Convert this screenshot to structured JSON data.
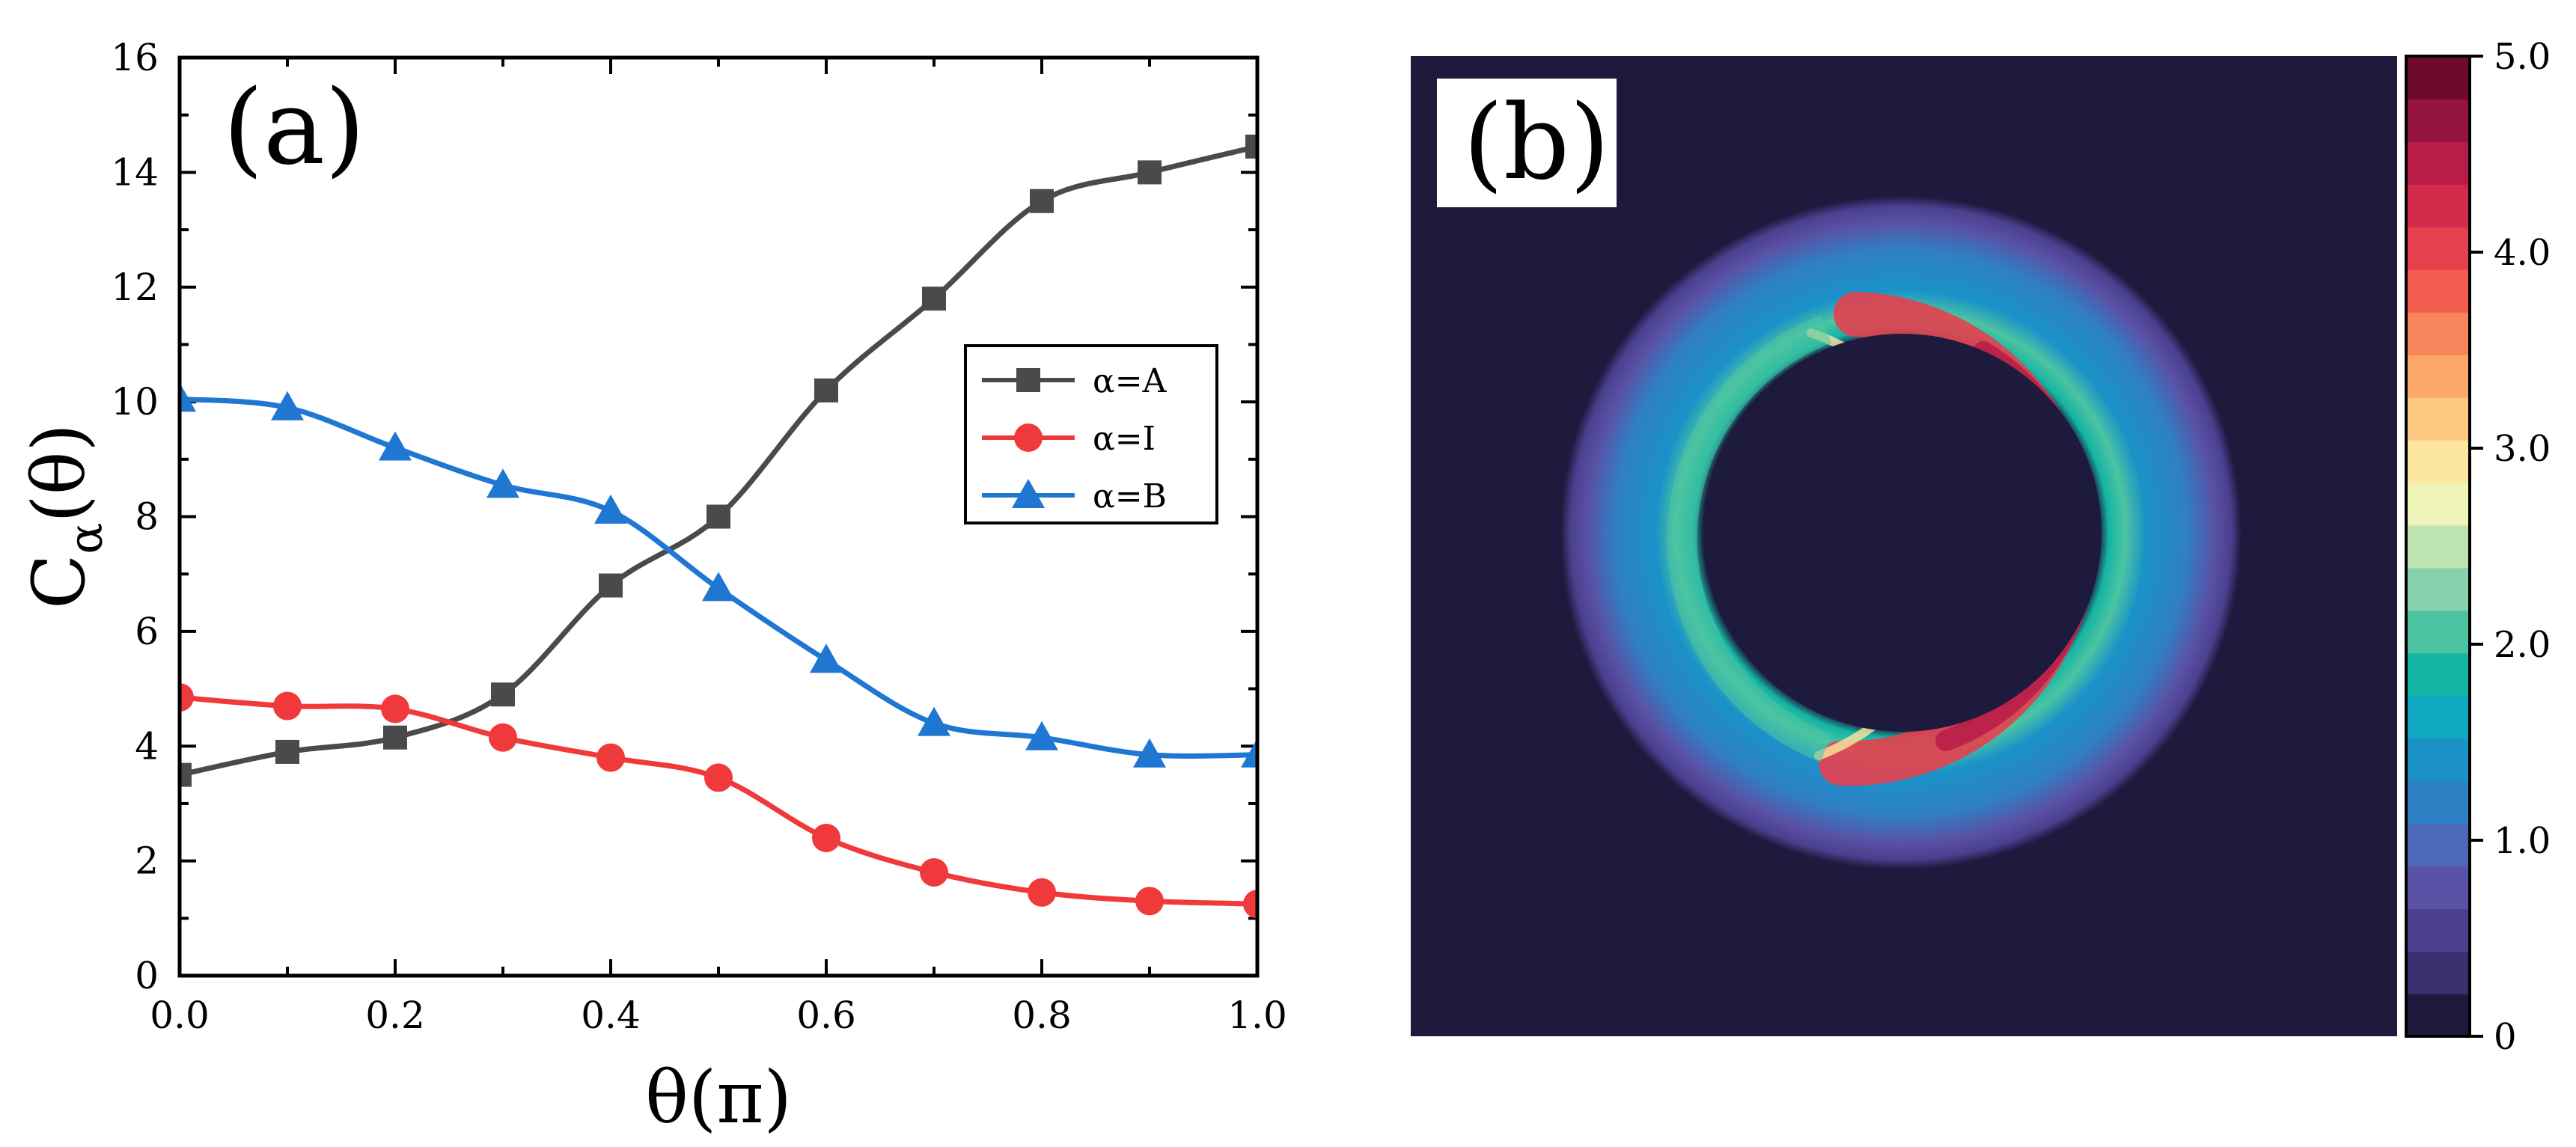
{
  "chart_data": [
    {
      "type": "line",
      "panel_label": "(a)",
      "xlabel": "θ(π)",
      "ylabel_main": "C",
      "ylabel_sub": "α",
      "ylabel_tail": "(θ)",
      "xlim": [
        0,
        1.0
      ],
      "ylim": [
        0,
        16
      ],
      "x_ticks": [
        0.0,
        0.2,
        0.4,
        0.6,
        0.8,
        1.0
      ],
      "x_tick_labels": [
        "0.0",
        "0.2",
        "0.4",
        "0.6",
        "0.8",
        "1.0"
      ],
      "y_ticks": [
        0,
        2,
        4,
        6,
        8,
        10,
        12,
        14,
        16
      ],
      "y_tick_labels": [
        "0",
        "2",
        "4",
        "6",
        "8",
        "10",
        "12",
        "14",
        "16"
      ],
      "legend_position": "upper-right",
      "x": [
        0.0,
        0.1,
        0.2,
        0.3,
        0.4,
        0.5,
        0.6,
        0.7,
        0.8,
        0.9,
        1.0
      ],
      "series": [
        {
          "name": "α=A",
          "marker": "square",
          "color": "#4a4a4a",
          "values": [
            3.5,
            3.9,
            4.15,
            4.9,
            6.8,
            8.0,
            10.2,
            11.8,
            13.5,
            14.0,
            14.45
          ]
        },
        {
          "name": "α=I",
          "marker": "circle",
          "color": "#f0393b",
          "values": [
            4.85,
            4.7,
            4.65,
            4.15,
            3.8,
            3.45,
            2.4,
            1.8,
            1.45,
            1.3,
            1.25
          ]
        },
        {
          "name": "α=B",
          "marker": "triangle",
          "color": "#1f77d2",
          "values": [
            10.05,
            9.9,
            9.2,
            8.55,
            8.1,
            6.75,
            5.5,
            4.4,
            4.15,
            3.85,
            3.85
          ]
        }
      ]
    },
    {
      "type": "heatmap",
      "panel_label": "(b)",
      "description_shape": "ring",
      "colorbar_range": [
        0,
        5.0
      ],
      "colorbar_ticks": [
        0,
        1.0,
        2.0,
        3.0,
        4.0,
        5.0
      ],
      "colorbar_tick_labels": [
        "0",
        "1.0",
        "2.0",
        "3.0",
        "4.0",
        "5.0"
      ],
      "colorbar_colors": [
        "#1e1a3e",
        "#3a2f6c",
        "#4b3f8e",
        "#5a52a6",
        "#4e68b8",
        "#2f7fc4",
        "#1a92c8",
        "#10a8c0",
        "#14b4a4",
        "#4cc4a2",
        "#86d2ae",
        "#bde3b0",
        "#eef4b8",
        "#fde7a0",
        "#fdc882",
        "#fba86a",
        "#f7845a",
        "#f05c4e",
        "#e6404e",
        "#d32a4c",
        "#b81c48",
        "#961440",
        "#6e0a2e"
      ]
    }
  ]
}
